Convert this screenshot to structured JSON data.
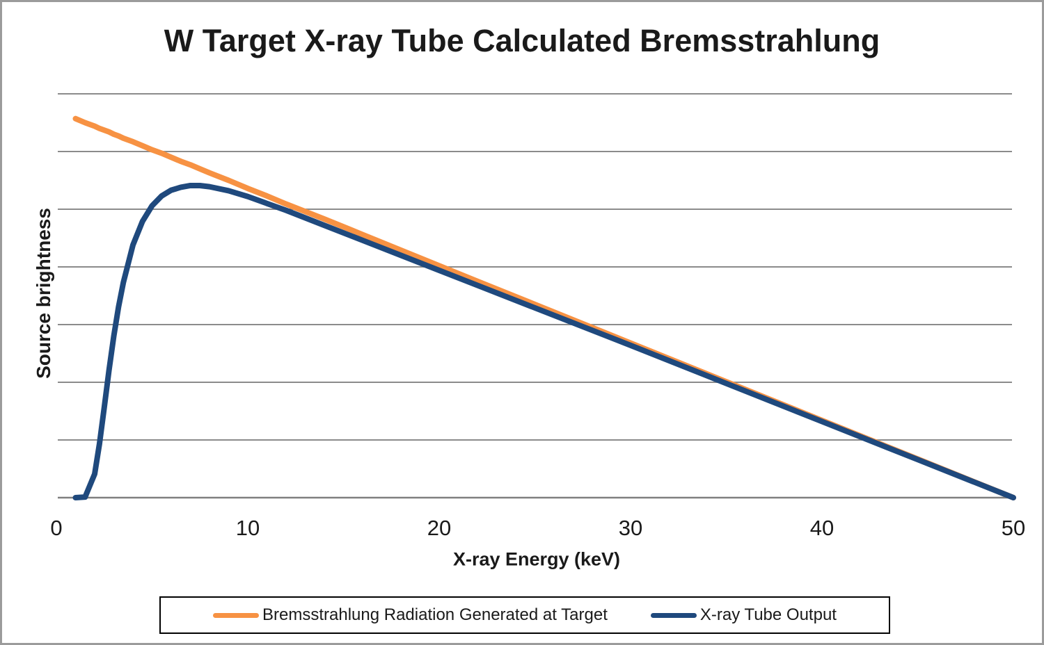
{
  "window": {
    "background": "#ffffff",
    "border_color": "#9b9b9b"
  },
  "chart_data": {
    "type": "line",
    "title": "W Target X-ray Tube Calculated Bremsstrahlung",
    "xlabel": "X-ray Energy (keV)",
    "ylabel": "Source brightness",
    "xlim": [
      0,
      50
    ],
    "ylim": [
      0,
      7
    ],
    "x_ticks": [
      0,
      10,
      20,
      30,
      40,
      50
    ],
    "y_tick_labels_visible": false,
    "y_units": "arbitrary units (1 unit per horizontal gridline, no labels shown)",
    "grid": "horizontal",
    "gridline_count": 7,
    "legend_position": "bottom-boxed",
    "colors": {
      "bremsstrahlung": "#F79243",
      "tube_output": "#1F497D",
      "gridline": "#8b8b8b",
      "axis_line": "#7f7f7f",
      "text": "#1a1a1a",
      "legend_border": "#000000"
    },
    "x": [
      1,
      1.5,
      2,
      2.25,
      2.5,
      2.75,
      3,
      3.25,
      3.5,
      4,
      4.5,
      5,
      5.5,
      6,
      6.5,
      7,
      7.5,
      8,
      9,
      10,
      11,
      12,
      14,
      16,
      18,
      20,
      22,
      25,
      30,
      35,
      40,
      45,
      50
    ],
    "series": [
      {
        "name": "Bremsstrahlung Radiation Generated at Target",
        "color": "#F79243",
        "values": [
          6.57,
          6.5,
          6.44,
          6.4,
          6.37,
          6.34,
          6.3,
          6.27,
          6.23,
          6.17,
          6.1,
          6.03,
          5.97,
          5.9,
          5.83,
          5.77,
          5.7,
          5.63,
          5.5,
          5.36,
          5.23,
          5.09,
          4.83,
          4.56,
          4.29,
          4.02,
          3.75,
          3.35,
          2.68,
          2.01,
          1.34,
          0.67,
          0.0
        ]
      },
      {
        "name": "X-ray Tube Output",
        "color": "#1F497D",
        "values": [
          0.0,
          0.01,
          0.41,
          0.93,
          1.56,
          2.21,
          2.8,
          3.31,
          3.73,
          4.38,
          4.79,
          5.06,
          5.23,
          5.33,
          5.38,
          5.41,
          5.41,
          5.39,
          5.32,
          5.22,
          5.1,
          4.98,
          4.72,
          4.46,
          4.2,
          3.94,
          3.68,
          3.29,
          2.64,
          1.98,
          1.32,
          0.66,
          0.0
        ]
      }
    ]
  }
}
